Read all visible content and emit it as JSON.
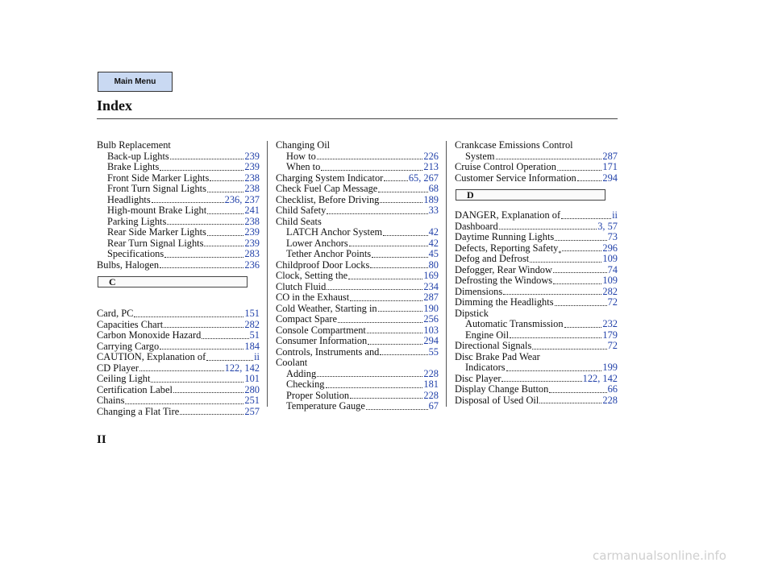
{
  "header": {
    "button": "Main Menu",
    "title": "Index"
  },
  "columns": [
    [
      {
        "text": "Bulb Replacement",
        "sub": [
          {
            "text": "Back-up Lights",
            "pages": "239"
          },
          {
            "text": "Brake Lights",
            "pages": "239"
          },
          {
            "text": "Front Side Marker Lights",
            "pages": "238"
          },
          {
            "text": "Front Turn Signal Lights",
            "pages": "238"
          },
          {
            "text": "Headlights",
            "pages": "236, 237"
          },
          {
            "text": "High-mount Brake Light",
            "pages": "241"
          },
          {
            "text": "Parking Lights",
            "pages": "238"
          },
          {
            "text": "Rear Side Marker Lights",
            "pages": "239"
          },
          {
            "text": "Rear Turn Signal Lights",
            "pages": "239"
          },
          {
            "text": "Specifications",
            "pages": "283"
          }
        ]
      },
      {
        "text": "Bulbs, Halogen",
        "pages": "236"
      },
      {
        "section": "C"
      },
      {
        "text": "Card, PC",
        "pages": "151"
      },
      {
        "text": "Capacities Chart",
        "pages": "282"
      },
      {
        "text": "Carbon Monoxide Hazard",
        "pages": "51"
      },
      {
        "text": "Carrying Cargo",
        "pages": "184"
      },
      {
        "text": "CAUTION, Explanation of",
        "pages": "ii"
      },
      {
        "text": "CD Player",
        "pages": "122, 142"
      },
      {
        "text": "Ceiling Light",
        "pages": "101"
      },
      {
        "text": "Certification Label",
        "pages": "280"
      },
      {
        "text": "Chains",
        "pages": "251"
      },
      {
        "text": "Changing a Flat Tire",
        "pages": "257"
      }
    ],
    [
      {
        "text": "Changing Oil",
        "sub": [
          {
            "text": "How to",
            "pages": "226"
          },
          {
            "text": "When to",
            "pages": "213"
          }
        ]
      },
      {
        "text": "Charging System Indicator",
        "pages": "65, 267"
      },
      {
        "text": "Check Fuel Cap Message",
        "pages": "68"
      },
      {
        "text": "Checklist, Before Driving",
        "pages": "189"
      },
      {
        "text": "Child Safety",
        "pages": "33"
      },
      {
        "text": "Child Seats",
        "sub": [
          {
            "text": "LATCH Anchor System",
            "pages": "42"
          },
          {
            "text": "Lower Anchors",
            "pages": "42"
          },
          {
            "text": "Tether Anchor Points",
            "pages": "45"
          }
        ]
      },
      {
        "text": "Childproof Door Locks",
        "pages": "80"
      },
      {
        "text": "Clock, Setting the",
        "pages": "169"
      },
      {
        "text": "Clutch Fluid",
        "pages": "234"
      },
      {
        "text": "CO in the Exhaust",
        "pages": "287"
      },
      {
        "text": "Cold Weather, Starting in",
        "pages": "190"
      },
      {
        "text": "Compact Spare",
        "pages": "256"
      },
      {
        "text": "Console Compartment",
        "pages": "103"
      },
      {
        "text": "Consumer Information",
        "pages": "294"
      },
      {
        "text": "Controls, Instruments and",
        "pages": "55"
      },
      {
        "text": "Coolant",
        "sub": [
          {
            "text": "Adding",
            "pages": "228"
          },
          {
            "text": "Checking",
            "pages": "181"
          },
          {
            "text": "Proper Solution",
            "pages": "228"
          },
          {
            "text": "Temperature Gauge",
            "pages": "67"
          }
        ]
      }
    ],
    [
      {
        "text": "Crankcase Emissions Control",
        "sub": [
          {
            "text": "System",
            "pages": "287"
          }
        ]
      },
      {
        "text": "Cruise Control Operation",
        "pages": "171"
      },
      {
        "text": "Customer Service Information",
        "pages": "294"
      },
      {
        "section": "D"
      },
      {
        "text": "DANGER, Explanation of",
        "pages": "ii"
      },
      {
        "text": "Dashboard",
        "pages": "3, 57"
      },
      {
        "text": "Daytime Running Lights",
        "pages": "73"
      },
      {
        "text": "Defects, Reporting Safety",
        "note": "*",
        "pages": "296"
      },
      {
        "text": "Defog and Defrost",
        "pages": "109"
      },
      {
        "text": "Defogger, Rear Window",
        "pages": "74"
      },
      {
        "text": "Defrosting the Windows",
        "pages": "109"
      },
      {
        "text": "Dimensions",
        "pages": "282"
      },
      {
        "text": "Dimming the Headlights",
        "pages": "72"
      },
      {
        "text": "Dipstick",
        "sub": [
          {
            "text": "Automatic Transmission",
            "pages": "232"
          },
          {
            "text": "Engine Oil",
            "pages": "179"
          }
        ]
      },
      {
        "text": "Directional Signals",
        "pages": "72"
      },
      {
        "text": "Disc Brake Pad Wear",
        "sub": [
          {
            "text": "Indicators",
            "pages": "199"
          }
        ]
      },
      {
        "text": "Disc Player",
        "pages": "122, 142"
      },
      {
        "text": "Display Change Button",
        "pages": "66"
      },
      {
        "text": "Disposal of Used Oil",
        "pages": "228"
      }
    ]
  ],
  "page_number": "II",
  "watermark": "carmanualsonline.info"
}
